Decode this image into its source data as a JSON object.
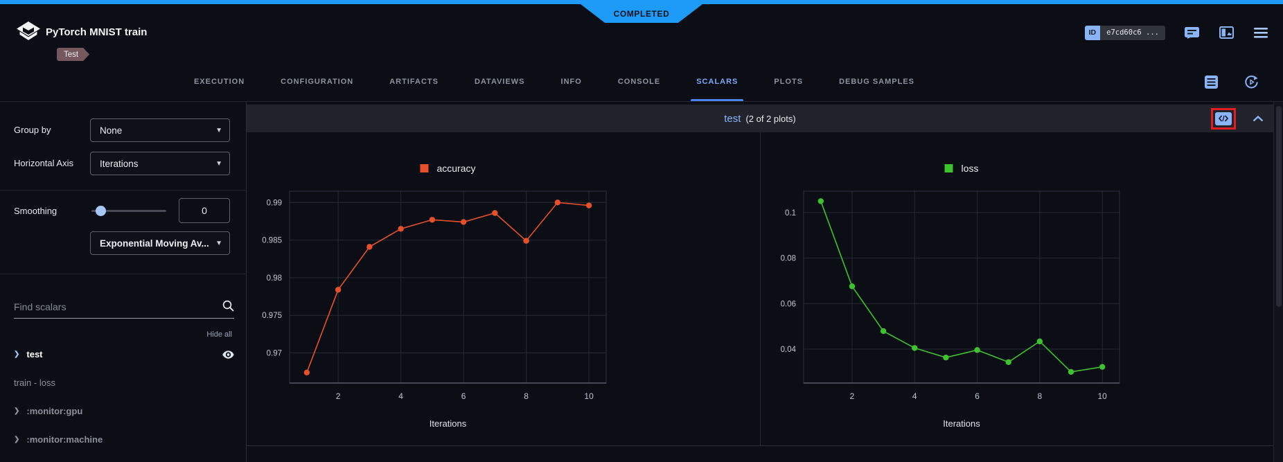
{
  "banner": {
    "status": "COMPLETED"
  },
  "header": {
    "title": "PyTorch MNIST train",
    "tag": "Test",
    "id_label": "ID",
    "id_value": "e7cd60c6 ..."
  },
  "tabs": {
    "items": [
      "EXECUTION",
      "CONFIGURATION",
      "ARTIFACTS",
      "DATAVIEWS",
      "INFO",
      "CONSOLE",
      "SCALARS",
      "PLOTS",
      "DEBUG SAMPLES"
    ],
    "active": "SCALARS"
  },
  "sidebar": {
    "group_by": {
      "label": "Group by",
      "value": "None"
    },
    "horizontal_axis": {
      "label": "Horizontal Axis",
      "value": "Iterations"
    },
    "smoothing": {
      "label": "Smoothing",
      "value": "0",
      "method": "Exponential Moving Av..."
    },
    "search": {
      "placeholder": "Find scalars"
    },
    "hide_all": "Hide all",
    "items": [
      {
        "label": "test",
        "chevron": true,
        "active": true,
        "eye": true
      },
      {
        "label": "train - loss",
        "chevron": false,
        "active": false,
        "eye": false
      },
      {
        "label": ":monitor:gpu",
        "chevron": true,
        "active": false,
        "eye": false
      },
      {
        "label": ":monitor:machine",
        "chevron": true,
        "active": false,
        "eye": false
      }
    ]
  },
  "group_header": {
    "title": "test",
    "count": "(2 of 2 plots)"
  },
  "chart_data": [
    {
      "type": "line",
      "title": "accuracy",
      "color": "#e8502c",
      "x": [
        1,
        2,
        3,
        4,
        5,
        6,
        7,
        8,
        9,
        10
      ],
      "y": [
        0.9674,
        0.9784,
        0.9841,
        0.9865,
        0.9877,
        0.9874,
        0.9886,
        0.9849,
        0.99,
        0.9896
      ],
      "xlabel": "Iterations",
      "xticks": [
        2,
        4,
        6,
        8,
        10
      ],
      "yticks": [
        0.97,
        0.975,
        0.98,
        0.985,
        0.99
      ],
      "xlim": [
        0.45,
        10.55
      ],
      "ylim": [
        0.966,
        0.9915
      ],
      "grid": true,
      "legend_position": "top-center"
    },
    {
      "type": "line",
      "title": "loss",
      "color": "#3ec22e",
      "x": [
        1,
        2,
        3,
        4,
        5,
        6,
        7,
        8,
        9,
        10
      ],
      "y": [
        0.105,
        0.0676,
        0.0479,
        0.0405,
        0.0363,
        0.0396,
        0.0343,
        0.0434,
        0.03,
        0.0322
      ],
      "xlabel": "Iterations",
      "xticks": [
        2,
        4,
        6,
        8,
        10
      ],
      "yticks": [
        0.04,
        0.06,
        0.08,
        0.1
      ],
      "xlim": [
        0.45,
        10.55
      ],
      "ylim": [
        0.0251,
        0.1094
      ],
      "grid": true,
      "legend_position": "top-center"
    }
  ],
  "colors": {
    "top_bar": "#1d9bf7",
    "accent_blue": "#8ab4f8",
    "accuracy_series": "#e8502c",
    "loss_series": "#3ec22e",
    "annotation_box": "#e51c23"
  }
}
